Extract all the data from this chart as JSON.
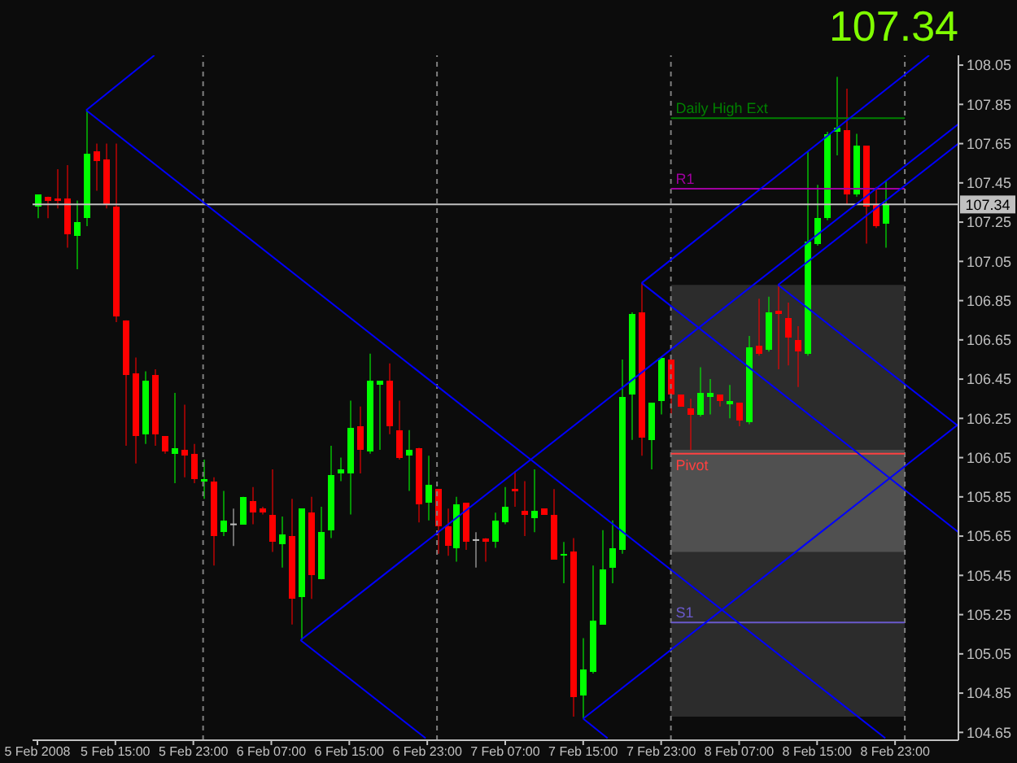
{
  "chart_data": {
    "type": "candlestick",
    "x": [
      "2008-02-05T07:00",
      "2008-02-05T08:00",
      "2008-02-05T09:00",
      "2008-02-05T10:00",
      "2008-02-05T11:00",
      "2008-02-05T12:00",
      "2008-02-05T13:00",
      "2008-02-05T14:00",
      "2008-02-05T15:00",
      "2008-02-05T16:00",
      "2008-02-05T17:00",
      "2008-02-05T18:00",
      "2008-02-05T19:00",
      "2008-02-05T20:00",
      "2008-02-05T21:00",
      "2008-02-05T22:00",
      "2008-02-05T23:00",
      "2008-02-06T00:00",
      "2008-02-06T01:00",
      "2008-02-06T02:00",
      "2008-02-06T03:00",
      "2008-02-06T04:00",
      "2008-02-06T05:00",
      "2008-02-06T06:00",
      "2008-02-06T07:00",
      "2008-02-06T08:00",
      "2008-02-06T09:00",
      "2008-02-06T10:00",
      "2008-02-06T11:00",
      "2008-02-06T12:00",
      "2008-02-06T13:00",
      "2008-02-06T14:00",
      "2008-02-06T15:00",
      "2008-02-06T16:00",
      "2008-02-06T17:00",
      "2008-02-06T18:00",
      "2008-02-06T19:00",
      "2008-02-06T20:00",
      "2008-02-06T21:00",
      "2008-02-06T22:00",
      "2008-02-06T23:00",
      "2008-02-07T00:00",
      "2008-02-07T01:00",
      "2008-02-07T02:00",
      "2008-02-07T03:00",
      "2008-02-07T04:00",
      "2008-02-07T05:00",
      "2008-02-07T06:00",
      "2008-02-07T07:00",
      "2008-02-07T08:00",
      "2008-02-07T09:00",
      "2008-02-07T10:00",
      "2008-02-07T11:00",
      "2008-02-07T12:00",
      "2008-02-07T13:00",
      "2008-02-07T14:00",
      "2008-02-07T15:00",
      "2008-02-07T16:00",
      "2008-02-07T17:00",
      "2008-02-07T18:00",
      "2008-02-07T19:00",
      "2008-02-07T20:00",
      "2008-02-07T21:00",
      "2008-02-07T22:00",
      "2008-02-07T23:00",
      "2008-02-08T00:00",
      "2008-02-08T01:00",
      "2008-02-08T02:00",
      "2008-02-08T03:00",
      "2008-02-08T04:00",
      "2008-02-08T05:00",
      "2008-02-08T06:00",
      "2008-02-08T07:00",
      "2008-02-08T08:00",
      "2008-02-08T09:00",
      "2008-02-08T10:00",
      "2008-02-08T11:00",
      "2008-02-08T12:00",
      "2008-02-08T13:00",
      "2008-02-08T14:00",
      "2008-02-08T15:00",
      "2008-02-08T16:00",
      "2008-02-08T17:00",
      "2008-02-08T18:00",
      "2008-02-08T19:00",
      "2008-02-08T20:00",
      "2008-02-08T21:00",
      "2008-02-08T22:00"
    ],
    "ohlc": [
      [
        107.33,
        107.39,
        107.27,
        107.39
      ],
      [
        107.38,
        107.38,
        107.27,
        107.36
      ],
      [
        107.37,
        107.52,
        107.32,
        107.36
      ],
      [
        107.37,
        107.54,
        107.12,
        107.19
      ],
      [
        107.18,
        107.36,
        107.01,
        107.25
      ],
      [
        107.27,
        107.82,
        107.23,
        107.6
      ],
      [
        107.61,
        107.65,
        107.41,
        107.56
      ],
      [
        107.57,
        107.65,
        107.32,
        107.34
      ],
      [
        107.33,
        107.65,
        106.74,
        106.77
      ],
      [
        106.75,
        106.75,
        106.11,
        106.47
      ],
      [
        106.48,
        106.56,
        106.02,
        106.16
      ],
      [
        106.17,
        106.49,
        106.12,
        106.44
      ],
      [
        106.47,
        106.5,
        106.11,
        106.17
      ],
      [
        106.16,
        106.16,
        106.07,
        106.08
      ],
      [
        106.07,
        106.38,
        105.92,
        106.1
      ],
      [
        106.09,
        106.32,
        105.95,
        106.06
      ],
      [
        106.07,
        106.12,
        105.92,
        105.94
      ],
      [
        105.93,
        106.04,
        105.84,
        105.94
      ],
      [
        105.93,
        105.95,
        105.5,
        105.65
      ],
      [
        105.67,
        105.88,
        105.65,
        105.73
      ],
      [
        105.71,
        105.79,
        105.6,
        105.71
      ],
      [
        105.71,
        105.85,
        105.71,
        105.85
      ],
      [
        105.83,
        105.9,
        105.71,
        105.77
      ],
      [
        105.79,
        105.8,
        105.76,
        105.77
      ],
      [
        105.76,
        105.99,
        105.57,
        105.62
      ],
      [
        105.61,
        105.75,
        105.49,
        105.66
      ],
      [
        105.65,
        105.84,
        105.2,
        105.33
      ],
      [
        105.34,
        105.79,
        105.12,
        105.79
      ],
      [
        105.77,
        105.85,
        105.33,
        105.45
      ],
      [
        105.43,
        105.8,
        105.43,
        105.67
      ],
      [
        105.68,
        106.11,
        105.64,
        105.96
      ],
      [
        105.97,
        106.05,
        105.93,
        105.99
      ],
      [
        105.97,
        106.34,
        105.76,
        106.2
      ],
      [
        106.21,
        106.31,
        105.97,
        106.09
      ],
      [
        106.08,
        106.58,
        106.07,
        106.44
      ],
      [
        106.42,
        106.44,
        106.09,
        106.44
      ],
      [
        106.44,
        106.53,
        106.17,
        106.21
      ],
      [
        106.19,
        106.34,
        106.04,
        106.05
      ],
      [
        106.06,
        106.19,
        105.88,
        106.09
      ],
      [
        106.1,
        106.1,
        105.72,
        105.81
      ],
      [
        105.82,
        106.06,
        105.73,
        105.91
      ],
      [
        105.89,
        105.89,
        105.56,
        105.7
      ],
      [
        105.7,
        105.79,
        105.55,
        105.6
      ],
      [
        105.59,
        105.85,
        105.52,
        105.81
      ],
      [
        105.82,
        105.82,
        105.58,
        105.62
      ],
      [
        105.63,
        105.67,
        105.49,
        105.63
      ],
      [
        105.64,
        105.64,
        105.52,
        105.62
      ],
      [
        105.62,
        105.77,
        105.59,
        105.73
      ],
      [
        105.72,
        105.9,
        105.71,
        105.8
      ],
      [
        105.89,
        105.98,
        105.8,
        105.88
      ],
      [
        105.78,
        105.93,
        105.65,
        105.76
      ],
      [
        105.74,
        105.99,
        105.67,
        105.78
      ],
      [
        105.79,
        105.79,
        105.76,
        105.76
      ],
      [
        105.76,
        105.89,
        105.53,
        105.53
      ],
      [
        105.55,
        105.62,
        105.41,
        105.56
      ],
      [
        105.57,
        105.64,
        104.73,
        104.83
      ],
      [
        104.84,
        105.13,
        104.72,
        104.97
      ],
      [
        104.96,
        105.5,
        104.95,
        105.22
      ],
      [
        105.2,
        105.68,
        105.2,
        105.48
      ],
      [
        105.49,
        105.73,
        105.41,
        105.59
      ],
      [
        105.58,
        106.55,
        105.56,
        106.36
      ],
      [
        106.37,
        106.79,
        106.14,
        106.78
      ],
      [
        106.79,
        106.94,
        106.06,
        106.15
      ],
      [
        106.14,
        106.33,
        105.99,
        106.33
      ],
      [
        106.34,
        106.56,
        106.27,
        106.56
      ],
      [
        106.55,
        106.55,
        106.27,
        106.37
      ],
      [
        106.37,
        106.37,
        106.31,
        106.31
      ],
      [
        106.3,
        106.35,
        106.09,
        106.27
      ],
      [
        106.27,
        106.51,
        106.26,
        106.38
      ],
      [
        106.36,
        106.45,
        106.27,
        106.38
      ],
      [
        106.37,
        106.37,
        106.31,
        106.34
      ],
      [
        106.32,
        106.42,
        106.25,
        106.34
      ],
      [
        106.33,
        106.33,
        106.21,
        106.24
      ],
      [
        106.23,
        106.67,
        106.22,
        106.61
      ],
      [
        106.62,
        106.86,
        106.57,
        106.58
      ],
      [
        106.6,
        106.87,
        106.59,
        106.79
      ],
      [
        106.8,
        106.93,
        106.5,
        106.78
      ],
      [
        106.76,
        106.84,
        106.52,
        106.66
      ],
      [
        106.65,
        106.72,
        106.41,
        106.59
      ],
      [
        106.58,
        107.61,
        106.57,
        107.15
      ],
      [
        107.14,
        107.44,
        107.13,
        107.27
      ],
      [
        107.27,
        107.71,
        107.26,
        107.7
      ],
      [
        107.71,
        107.99,
        107.59,
        107.73
      ],
      [
        107.72,
        107.93,
        107.34,
        107.39
      ],
      [
        107.39,
        107.7,
        107.38,
        107.64
      ],
      [
        107.64,
        107.64,
        107.14,
        107.33
      ],
      [
        107.34,
        107.43,
        107.22,
        107.23
      ],
      [
        107.24,
        107.46,
        107.12,
        107.34
      ]
    ],
    "colors": [
      "#00ff00",
      "#ff0000",
      "#ff0000",
      "#ff0000",
      "#00ff00",
      "#00ff00",
      "#ff0000",
      "#ff0000",
      "#ff0000",
      "#ff0000",
      "#ff0000",
      "#00ff00",
      "#ff0000",
      "#ff0000",
      "#00ff00",
      "#ff0000",
      "#ff0000",
      "#00ff00",
      "#ff0000",
      "#00ff00",
      "#c0c0c0",
      "#00ff00",
      "#ff0000",
      "#ff0000",
      "#ff0000",
      "#00ff00",
      "#ff0000",
      "#00ff00",
      "#ff0000",
      "#00ff00",
      "#00ff00",
      "#00ff00",
      "#00ff00",
      "#ff0000",
      "#00ff00",
      "#00ff00",
      "#ff0000",
      "#ff0000",
      "#00ff00",
      "#ff0000",
      "#00ff00",
      "#ff0000",
      "#ff0000",
      "#00ff00",
      "#ff0000",
      "#c0c0c0",
      "#ff0000",
      "#00ff00",
      "#00ff00",
      "#ff0000",
      "#ff0000",
      "#00ff00",
      "#ff0000",
      "#ff0000",
      "#00ff00",
      "#ff0000",
      "#00ff00",
      "#00ff00",
      "#00ff00",
      "#00ff00",
      "#00ff00",
      "#00ff00",
      "#ff0000",
      "#00ff00",
      "#00ff00",
      "#ff0000",
      "#ff0000",
      "#ff0000",
      "#00ff00",
      "#00ff00",
      "#ff0000",
      "#00ff00",
      "#ff0000",
      "#00ff00",
      "#ff0000",
      "#00ff00",
      "#ff0000",
      "#ff0000",
      "#ff0000",
      "#00ff00",
      "#00ff00",
      "#00ff00",
      "#00ff00",
      "#ff0000",
      "#00ff00",
      "#ff0000",
      "#ff0000",
      "#00ff00"
    ],
    "series": [
      {
        "type": "line",
        "color": "#0000ff",
        "x": [
          "2008-02-05T12:00",
          "2008-02-05T19:00"
        ],
        "values": [
          107.82,
          108.1
        ]
      },
      {
        "type": "line",
        "color": "#0000ff",
        "x": [
          "2008-02-05T12:00",
          "2008-02-08T22:00"
        ],
        "values": [
          107.82,
          104.62
        ]
      },
      {
        "type": "line",
        "color": "#0000ff",
        "x": [
          "2008-02-06T10:00",
          "2008-02-09T05:30"
        ],
        "values": [
          105.12,
          107.75
        ]
      },
      {
        "type": "line",
        "color": "#0000ff",
        "x": [
          "2008-02-06T10:00",
          "2008-02-06T22:50"
        ],
        "values": [
          105.12,
          104.62
        ]
      },
      {
        "type": "line",
        "color": "#0000ff",
        "x": [
          "2008-02-07T15:00",
          "2008-02-09T05:30"
        ],
        "values": [
          104.72,
          106.22
        ]
      },
      {
        "type": "line",
        "color": "#0000ff",
        "x": [
          "2008-02-07T15:00",
          "2008-02-07T17:30"
        ],
        "values": [
          104.72,
          104.62
        ]
      },
      {
        "type": "line",
        "color": "#0000ff",
        "x": [
          "2008-02-07T21:00",
          "2008-02-09T02:30"
        ],
        "values": [
          106.94,
          108.1
        ]
      },
      {
        "type": "line",
        "color": "#0000ff",
        "x": [
          "2008-02-07T21:00",
          "2008-02-09T05:30"
        ],
        "values": [
          106.94,
          105.67
        ]
      },
      {
        "type": "line",
        "color": "#0000ff",
        "x": [
          "2008-02-08T11:00",
          "2008-02-09T05:30"
        ],
        "values": [
          106.93,
          107.65
        ]
      },
      {
        "type": "line",
        "color": "#0000ff",
        "x": [
          "2008-02-08T11:00",
          "2008-02-09T05:30"
        ],
        "values": [
          106.93,
          106.21
        ]
      }
    ],
    "xlim": [
      "2008-02-05T06:30",
      "2008-02-09T05:30"
    ],
    "xticks": [
      {
        "value": "2008-02-05T07:00",
        "label": "5 Feb 2008"
      },
      {
        "value": "2008-02-05T15:00",
        "label": "5 Feb 15:00"
      },
      {
        "value": "2008-02-05T23:00",
        "label": "5 Feb 23:00"
      },
      {
        "value": "2008-02-06T07:00",
        "label": "6 Feb 07:00"
      },
      {
        "value": "2008-02-06T15:00",
        "label": "6 Feb 15:00"
      },
      {
        "value": "2008-02-06T23:00",
        "label": "6 Feb 23:00"
      },
      {
        "value": "2008-02-07T07:00",
        "label": "7 Feb 07:00"
      },
      {
        "value": "2008-02-07T15:00",
        "label": "7 Feb 15:00"
      },
      {
        "value": "2008-02-07T23:00",
        "label": "7 Feb 23:00"
      },
      {
        "value": "2008-02-08T07:00",
        "label": "8 Feb 07:00"
      },
      {
        "value": "2008-02-08T15:00",
        "label": "8 Feb 15:00"
      },
      {
        "value": "2008-02-08T23:00",
        "label": "8 Feb 23:00"
      }
    ],
    "ylim": [
      104.61,
      108.1
    ],
    "yticks": [
      104.65,
      104.85,
      105.05,
      105.25,
      105.45,
      105.65,
      105.85,
      106.05,
      106.25,
      106.45,
      106.65,
      106.85,
      107.05,
      107.25,
      107.45,
      107.65,
      107.85,
      108.05
    ],
    "ref_lines": [
      {
        "axis": "x",
        "value": "2008-02-06T00:00",
        "color": "#808080",
        "line_style": "dashed"
      },
      {
        "axis": "x",
        "value": "2008-02-07T00:00",
        "color": "#808080",
        "line_style": "dashed"
      },
      {
        "axis": "x",
        "value": "2008-02-08T00:00",
        "color": "#808080",
        "line_style": "dashed"
      },
      {
        "axis": "x",
        "value": "2008-02-09T00:00",
        "color": "#808080",
        "line_style": "dashed"
      },
      {
        "axis": "y",
        "value": 107.34,
        "label": "107.34",
        "color": "#c0c0c0"
      },
      {
        "axis": "y",
        "value": 107.78,
        "label": "Daily High Ext",
        "color": "#008000"
      },
      {
        "axis": "y",
        "value": 107.42,
        "label": "R1",
        "color": "#a000a0"
      },
      {
        "axis": "y",
        "value": 106.07,
        "label": "Pivot",
        "color": "#ff4040"
      },
      {
        "axis": "y",
        "value": 105.21,
        "label": "S1",
        "color": "#6a5acd"
      }
    ],
    "bands": [
      {
        "axis": "y",
        "from": 104.73,
        "to": 106.93,
        "color": "#2c2c2c"
      },
      {
        "axis": "y",
        "from": 105.57,
        "to": 106.09,
        "color": "#505050"
      }
    ],
    "annotations": [
      "107.34"
    ]
  }
}
